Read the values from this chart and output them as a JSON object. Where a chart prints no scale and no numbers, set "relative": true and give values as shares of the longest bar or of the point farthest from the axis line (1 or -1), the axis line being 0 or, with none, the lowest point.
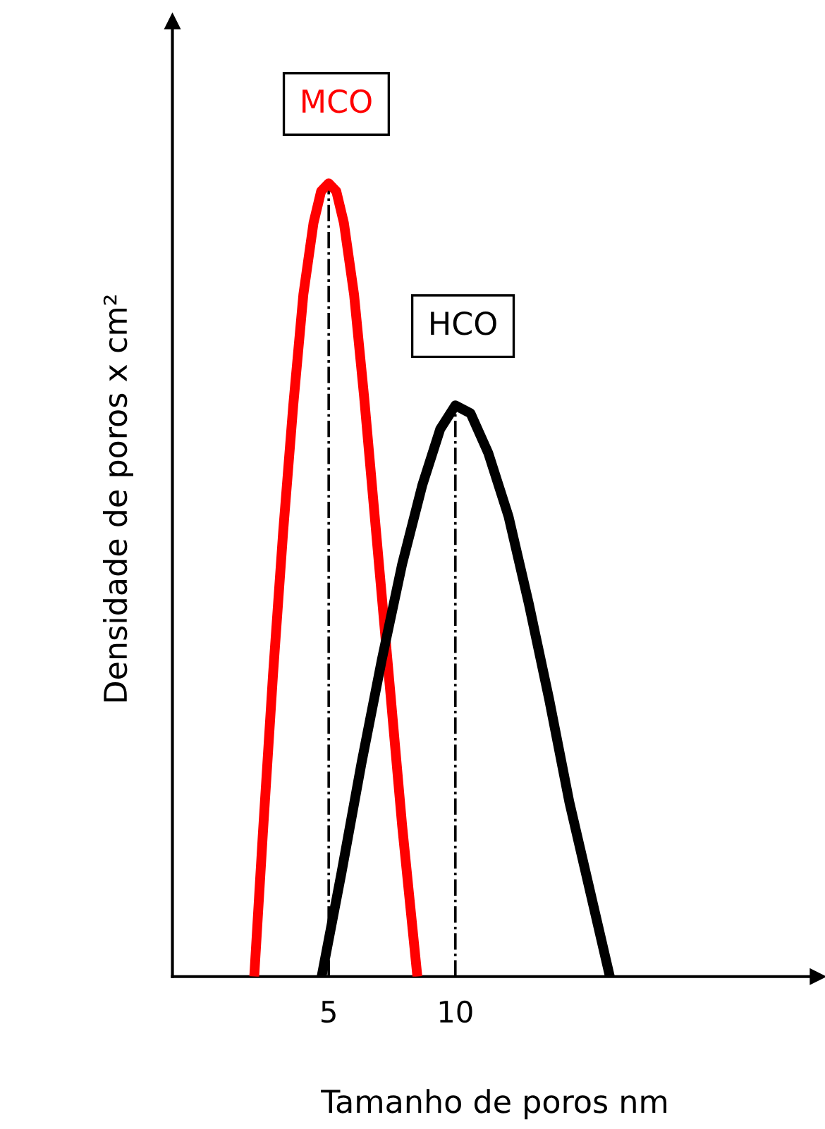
{
  "chart_data": {
    "type": "line",
    "relative": true,
    "xlabel": "Tamanho de poros nm",
    "ylabel": "Densidade de poros x cm²",
    "xlim": [
      -1.17,
      24.3
    ],
    "xticks": [
      5,
      10
    ],
    "tick_labels": "x",
    "grid": false,
    "marker": "none",
    "line_style": "solid",
    "series": [
      {
        "name": "MCO",
        "color": "#ff0000",
        "x": [
          2.06,
          2.4,
          2.8,
          3.2,
          3.6,
          4.0,
          4.4,
          4.7,
          5,
          5.3,
          5.6,
          6.0,
          6.4,
          6.9,
          7.4,
          7.9,
          8.5
        ],
        "values": [
          0,
          0.18,
          0.38,
          0.56,
          0.72,
          0.86,
          0.95,
          0.99,
          1,
          0.99,
          0.95,
          0.86,
          0.73,
          0.55,
          0.37,
          0.19,
          0
        ]
      },
      {
        "name": "HCO",
        "color": "#000000",
        "x": [
          4.72,
          5.5,
          6.3,
          7.1,
          7.9,
          8.7,
          9.4,
          10,
          10.6,
          11.3,
          12.1,
          12.9,
          13.7,
          14.5,
          15.3,
          16.1
        ],
        "values": [
          0,
          0.13,
          0.27,
          0.4,
          0.52,
          0.62,
          0.69,
          0.72,
          0.71,
          0.66,
          0.58,
          0.47,
          0.35,
          0.22,
          0.11,
          0
        ]
      }
    ],
    "ref_lines": [
      {
        "axis": "x",
        "value": 5,
        "color": "#000000",
        "line_style": "dashdot"
      },
      {
        "axis": "x",
        "value": 10,
        "color": "#000000",
        "line_style": "dashdot"
      }
    ]
  }
}
